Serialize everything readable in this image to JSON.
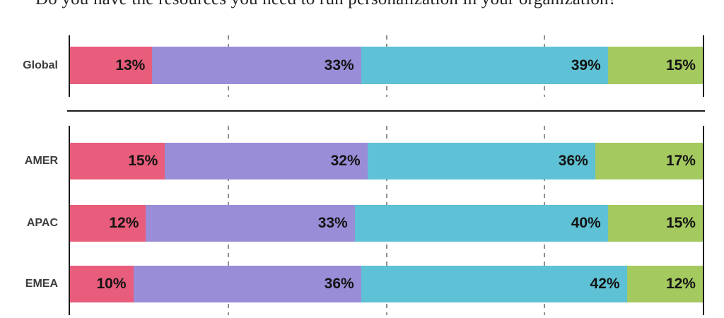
{
  "title": "Do you have the resources you need to run personalization in your organization?",
  "chart_data": {
    "type": "bar",
    "orientation": "horizontal",
    "stacked": true,
    "unit": "%",
    "title": "Do you have the resources you need to run personalization in your organization?",
    "categories": [
      "Global",
      "AMER",
      "APAC",
      "EMEA"
    ],
    "groups": [
      {
        "name": "global-group",
        "rows": [
          "Global"
        ]
      },
      {
        "name": "regions-group",
        "rows": [
          "AMER",
          "APAC",
          "EMEA"
        ]
      }
    ],
    "series": [
      {
        "name": "pink-segment",
        "color": "#E85D7B",
        "values": {
          "Global": 13,
          "AMER": 15,
          "APAC": 12,
          "EMEA": 10
        }
      },
      {
        "name": "purple-segment",
        "color": "#9A8DD8",
        "values": {
          "Global": 33,
          "AMER": 32,
          "APAC": 33,
          "EMEA": 36
        }
      },
      {
        "name": "teal-segment",
        "color": "#5FC1D5",
        "values": {
          "Global": 39,
          "AMER": 36,
          "APAC": 40,
          "EMEA": 42
        }
      },
      {
        "name": "green-segment",
        "color": "#A4C95F",
        "values": {
          "Global": 15,
          "AMER": 17,
          "APAC": 15,
          "EMEA": 12
        }
      }
    ],
    "xlim": [
      0,
      100
    ],
    "gridlines_percent": [
      25,
      50,
      75
    ],
    "grid_style": "dashed",
    "legend": "none",
    "label_format": "{value}%"
  },
  "colors": {
    "axis": "#1a1a1a",
    "gridline": "#8f8f8f",
    "row_label": "#3d3d3d",
    "value_label": "#131313",
    "background": "#ffffff"
  }
}
